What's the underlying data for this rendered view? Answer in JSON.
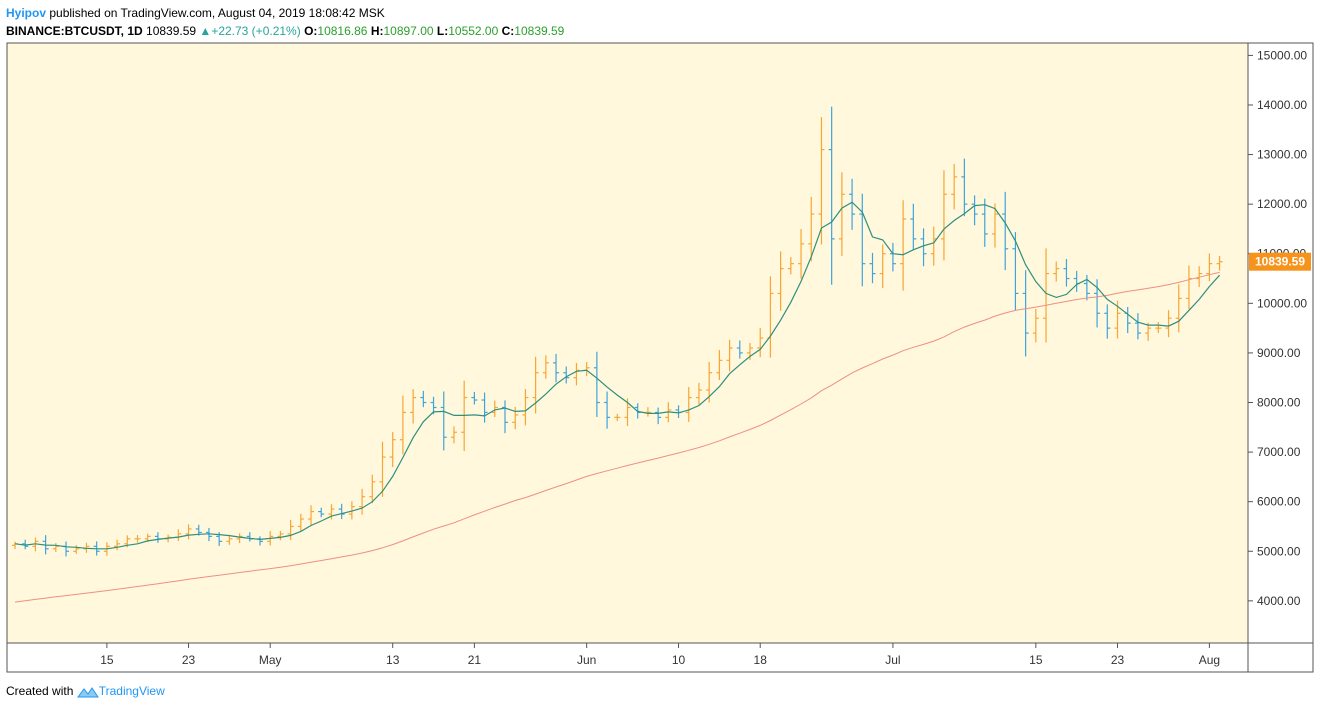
{
  "header": {
    "author": "Hyipov",
    "published": "published on TradingView.com, August 04, 2019 18:08:42 MSK",
    "symbol": "BINANCE:BTCUSDT, 1D",
    "last": "10839.59",
    "change": "+22.73 (+0.21%)",
    "o_label": "O:",
    "o_value": "10816.86",
    "h_label": "H:",
    "h_value": "10897.00",
    "l_label": "L:",
    "l_value": "10552.00",
    "c_label": "C:",
    "c_value": "10839.59"
  },
  "footer": {
    "created_with": "Created with",
    "brand": "TradingView"
  },
  "colors": {
    "background": "#fff8dc",
    "up": "#f7a534",
    "down": "#3fa3dd",
    "fast_ma": "#2f8f7f",
    "slow_ma": "#ee8f84",
    "last_price": "#f7931a"
  },
  "chart_data": {
    "type": "ohlc",
    "ylim": [
      3150,
      15250
    ],
    "y_ticks": [
      4000,
      5000,
      6000,
      7000,
      8000,
      9000,
      10000,
      11000,
      12000,
      13000,
      14000,
      15000
    ],
    "y_tick_labels": [
      "4000.00",
      "5000.00",
      "6000.00",
      "7000.00",
      "8000.00",
      "9000.00",
      "10000.00",
      "11000.00",
      "12000.00",
      "13000.00",
      "14000.00",
      "15000.00"
    ],
    "x_start": "2019-04-06",
    "x_end": "2019-08-04",
    "x_ticks": [
      {
        "date": "2019-04-15",
        "label": "15"
      },
      {
        "date": "2019-04-23",
        "label": "23"
      },
      {
        "date": "2019-05-01",
        "label": "May"
      },
      {
        "date": "2019-05-13",
        "label": "13"
      },
      {
        "date": "2019-05-21",
        "label": "21"
      },
      {
        "date": "2019-06-01",
        "label": "Jun"
      },
      {
        "date": "2019-06-10",
        "label": "10"
      },
      {
        "date": "2019-06-18",
        "label": "18"
      },
      {
        "date": "2019-07-01",
        "label": "Jul"
      },
      {
        "date": "2019-07-15",
        "label": "15"
      },
      {
        "date": "2019-07-23",
        "label": "23"
      },
      {
        "date": "2019-08-01",
        "label": "Aug"
      }
    ],
    "last_price_label": "10839.59",
    "last_price": 10839.59,
    "closes": [
      5150,
      5100,
      5200,
      5050,
      5100,
      5000,
      5050,
      5100,
      5000,
      5100,
      5150,
      5250,
      5250,
      5300,
      5250,
      5280,
      5350,
      5450,
      5380,
      5300,
      5200,
      5250,
      5300,
      5250,
      5200,
      5300,
      5350,
      5500,
      5650,
      5800,
      5750,
      5850,
      5750,
      5900,
      6100,
      6400,
      6900,
      7250,
      7800,
      8100,
      8000,
      7900,
      7300,
      7400,
      8100,
      8050,
      7800,
      7900,
      7600,
      7750,
      8100,
      8600,
      8800,
      8600,
      8500,
      8650,
      8700,
      8000,
      7700,
      7700,
      7900,
      7800,
      7800,
      7700,
      7850,
      7800,
      8100,
      8250,
      8600,
      8850,
      9100,
      9000,
      9100,
      9300,
      10200,
      10700,
      10800,
      11200,
      11800,
      13100,
      11300,
      12200,
      11800,
      10800,
      10600,
      11000,
      10800,
      11700,
      11300,
      11000,
      11300,
      12200,
      12550,
      12000,
      11800,
      11400,
      11800,
      11100,
      10200,
      9400,
      9700,
      10600,
      10700,
      10500,
      10400,
      10200,
      9800,
      9500,
      9800,
      9600,
      9400,
      9500,
      9500,
      9700,
      10100,
      10500,
      10600,
      10800,
      10839.59
    ],
    "series": [
      {
        "name": "",
        "kind": "fast_ma",
        "length": 5
      },
      {
        "name": "",
        "kind": "slow_ma",
        "length": 50
      }
    ]
  }
}
